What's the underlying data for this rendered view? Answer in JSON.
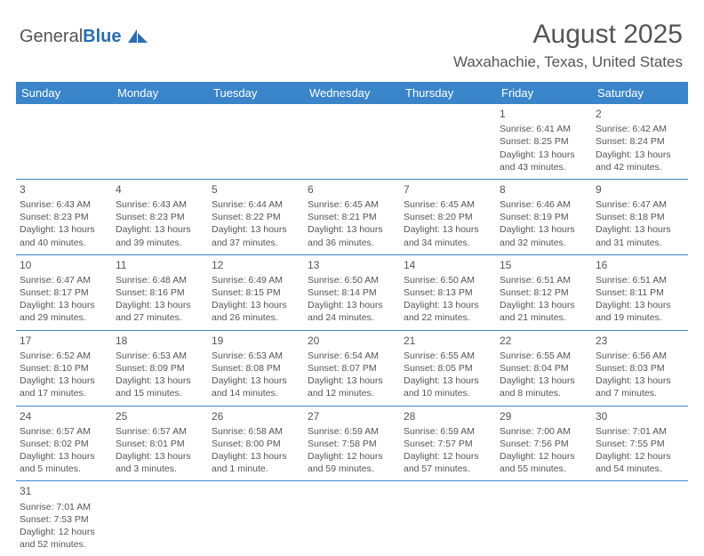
{
  "logo": {
    "text1": "General",
    "text2": "Blue"
  },
  "title": "August 2025",
  "location": "Waxahachie, Texas, United States",
  "colors": {
    "header_bg": "#3a85c9",
    "header_text": "#ffffff",
    "border": "#3a85c9",
    "text": "#555555",
    "background": "#ffffff"
  },
  "days": [
    "Sunday",
    "Monday",
    "Tuesday",
    "Wednesday",
    "Thursday",
    "Friday",
    "Saturday"
  ],
  "weeks": [
    [
      null,
      null,
      null,
      null,
      null,
      {
        "n": "1",
        "sr": "Sunrise: 6:41 AM",
        "ss": "Sunset: 8:25 PM",
        "dl": "Daylight: 13 hours and 43 minutes."
      },
      {
        "n": "2",
        "sr": "Sunrise: 6:42 AM",
        "ss": "Sunset: 8:24 PM",
        "dl": "Daylight: 13 hours and 42 minutes."
      }
    ],
    [
      {
        "n": "3",
        "sr": "Sunrise: 6:43 AM",
        "ss": "Sunset: 8:23 PM",
        "dl": "Daylight: 13 hours and 40 minutes."
      },
      {
        "n": "4",
        "sr": "Sunrise: 6:43 AM",
        "ss": "Sunset: 8:23 PM",
        "dl": "Daylight: 13 hours and 39 minutes."
      },
      {
        "n": "5",
        "sr": "Sunrise: 6:44 AM",
        "ss": "Sunset: 8:22 PM",
        "dl": "Daylight: 13 hours and 37 minutes."
      },
      {
        "n": "6",
        "sr": "Sunrise: 6:45 AM",
        "ss": "Sunset: 8:21 PM",
        "dl": "Daylight: 13 hours and 36 minutes."
      },
      {
        "n": "7",
        "sr": "Sunrise: 6:45 AM",
        "ss": "Sunset: 8:20 PM",
        "dl": "Daylight: 13 hours and 34 minutes."
      },
      {
        "n": "8",
        "sr": "Sunrise: 6:46 AM",
        "ss": "Sunset: 8:19 PM",
        "dl": "Daylight: 13 hours and 32 minutes."
      },
      {
        "n": "9",
        "sr": "Sunrise: 6:47 AM",
        "ss": "Sunset: 8:18 PM",
        "dl": "Daylight: 13 hours and 31 minutes."
      }
    ],
    [
      {
        "n": "10",
        "sr": "Sunrise: 6:47 AM",
        "ss": "Sunset: 8:17 PM",
        "dl": "Daylight: 13 hours and 29 minutes."
      },
      {
        "n": "11",
        "sr": "Sunrise: 6:48 AM",
        "ss": "Sunset: 8:16 PM",
        "dl": "Daylight: 13 hours and 27 minutes."
      },
      {
        "n": "12",
        "sr": "Sunrise: 6:49 AM",
        "ss": "Sunset: 8:15 PM",
        "dl": "Daylight: 13 hours and 26 minutes."
      },
      {
        "n": "13",
        "sr": "Sunrise: 6:50 AM",
        "ss": "Sunset: 8:14 PM",
        "dl": "Daylight: 13 hours and 24 minutes."
      },
      {
        "n": "14",
        "sr": "Sunrise: 6:50 AM",
        "ss": "Sunset: 8:13 PM",
        "dl": "Daylight: 13 hours and 22 minutes."
      },
      {
        "n": "15",
        "sr": "Sunrise: 6:51 AM",
        "ss": "Sunset: 8:12 PM",
        "dl": "Daylight: 13 hours and 21 minutes."
      },
      {
        "n": "16",
        "sr": "Sunrise: 6:51 AM",
        "ss": "Sunset: 8:11 PM",
        "dl": "Daylight: 13 hours and 19 minutes."
      }
    ],
    [
      {
        "n": "17",
        "sr": "Sunrise: 6:52 AM",
        "ss": "Sunset: 8:10 PM",
        "dl": "Daylight: 13 hours and 17 minutes."
      },
      {
        "n": "18",
        "sr": "Sunrise: 6:53 AM",
        "ss": "Sunset: 8:09 PM",
        "dl": "Daylight: 13 hours and 15 minutes."
      },
      {
        "n": "19",
        "sr": "Sunrise: 6:53 AM",
        "ss": "Sunset: 8:08 PM",
        "dl": "Daylight: 13 hours and 14 minutes."
      },
      {
        "n": "20",
        "sr": "Sunrise: 6:54 AM",
        "ss": "Sunset: 8:07 PM",
        "dl": "Daylight: 13 hours and 12 minutes."
      },
      {
        "n": "21",
        "sr": "Sunrise: 6:55 AM",
        "ss": "Sunset: 8:05 PM",
        "dl": "Daylight: 13 hours and 10 minutes."
      },
      {
        "n": "22",
        "sr": "Sunrise: 6:55 AM",
        "ss": "Sunset: 8:04 PM",
        "dl": "Daylight: 13 hours and 8 minutes."
      },
      {
        "n": "23",
        "sr": "Sunrise: 6:56 AM",
        "ss": "Sunset: 8:03 PM",
        "dl": "Daylight: 13 hours and 7 minutes."
      }
    ],
    [
      {
        "n": "24",
        "sr": "Sunrise: 6:57 AM",
        "ss": "Sunset: 8:02 PM",
        "dl": "Daylight: 13 hours and 5 minutes."
      },
      {
        "n": "25",
        "sr": "Sunrise: 6:57 AM",
        "ss": "Sunset: 8:01 PM",
        "dl": "Daylight: 13 hours and 3 minutes."
      },
      {
        "n": "26",
        "sr": "Sunrise: 6:58 AM",
        "ss": "Sunset: 8:00 PM",
        "dl": "Daylight: 13 hours and 1 minute."
      },
      {
        "n": "27",
        "sr": "Sunrise: 6:59 AM",
        "ss": "Sunset: 7:58 PM",
        "dl": "Daylight: 12 hours and 59 minutes."
      },
      {
        "n": "28",
        "sr": "Sunrise: 6:59 AM",
        "ss": "Sunset: 7:57 PM",
        "dl": "Daylight: 12 hours and 57 minutes."
      },
      {
        "n": "29",
        "sr": "Sunrise: 7:00 AM",
        "ss": "Sunset: 7:56 PM",
        "dl": "Daylight: 12 hours and 55 minutes."
      },
      {
        "n": "30",
        "sr": "Sunrise: 7:01 AM",
        "ss": "Sunset: 7:55 PM",
        "dl": "Daylight: 12 hours and 54 minutes."
      }
    ],
    [
      {
        "n": "31",
        "sr": "Sunrise: 7:01 AM",
        "ss": "Sunset: 7:53 PM",
        "dl": "Daylight: 12 hours and 52 minutes."
      },
      null,
      null,
      null,
      null,
      null,
      null
    ]
  ]
}
